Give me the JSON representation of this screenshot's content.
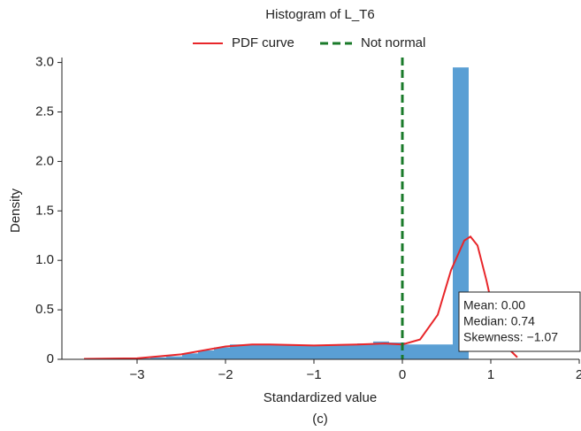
{
  "chart_data": {
    "type": "histogram",
    "title": "Histogram of L_T6",
    "xlabel": "Standardized value",
    "ylabel": "Density",
    "caption": "(c)",
    "bins": [
      -3.57,
      -3.39,
      -3.21,
      -3.03,
      -2.85,
      -2.67,
      -2.49,
      -2.31,
      -2.13,
      -1.95,
      -1.77,
      -1.59,
      -1.41,
      -1.23,
      -1.05,
      -0.87,
      -0.69,
      -0.51,
      -0.33,
      -0.15,
      0.03,
      0.21,
      0.39,
      0.57,
      0.75
    ],
    "values": [
      0.01,
      0.01,
      0.01,
      0.01,
      0.02,
      0.03,
      0.06,
      0.09,
      0.12,
      0.15,
      0.15,
      0.15,
      0.14,
      0.14,
      0.14,
      0.15,
      0.15,
      0.16,
      0.18,
      0.17,
      0.15,
      0.15,
      0.15,
      2.95
    ],
    "color": "#5a9fd4",
    "series": [
      {
        "name": "PDF curve",
        "color": "#e8262a",
        "x": [
          -3.6,
          -3,
          -2.5,
          -2,
          -1.7,
          -1.5,
          -1,
          -0.5,
          -0.2,
          0,
          0.2,
          0.4,
          0.55,
          0.7,
          0.77,
          0.85,
          0.95,
          1.05,
          1.15,
          1.3
        ],
        "values": [
          0.005,
          0.01,
          0.05,
          0.13,
          0.15,
          0.15,
          0.14,
          0.15,
          0.16,
          0.15,
          0.2,
          0.45,
          0.9,
          1.2,
          1.24,
          1.15,
          0.8,
          0.4,
          0.15,
          0.02
        ]
      }
    ],
    "vline": {
      "name": "Not normal",
      "x": 0,
      "color": "#1a7a2a"
    },
    "annotation": [
      "Mean: 0.00",
      "Median: 0.74",
      "Skewness: −1.07"
    ],
    "xlim": [
      -3.85,
      2.0
    ],
    "ylim": [
      0,
      3.05
    ],
    "xticks": [
      {
        "value": -3,
        "label": "−3"
      },
      {
        "value": -2,
        "label": "−2"
      },
      {
        "value": -1,
        "label": "−1"
      },
      0,
      1,
      2
    ],
    "yticks": [
      0,
      0.5,
      {
        "value": 1,
        "label": "1.0"
      },
      1.5,
      {
        "value": 2,
        "label": "2.0"
      },
      2.5,
      {
        "value": 3,
        "label": "3.0"
      }
    ]
  }
}
